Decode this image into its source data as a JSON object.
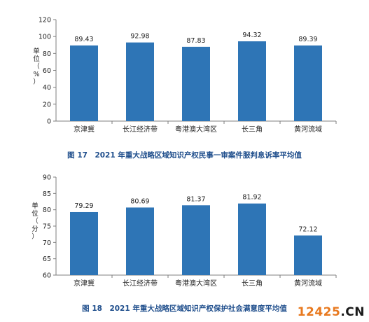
{
  "figures": [
    {
      "caption": "图 17　2021 年重大战略区域知识产权民事一审案件服判息诉率平均值"
    },
    {
      "caption": "图 18　2021 年重大战略区域知识产权保护社会满意度平均值"
    }
  ],
  "watermark": {
    "number": "12425",
    "domain": ".CN"
  },
  "chart_data": [
    {
      "type": "bar",
      "categories": [
        "京津冀",
        "长江经济带",
        "粤港澳大湾区",
        "长三角",
        "黄河流域"
      ],
      "values": [
        89.43,
        92.98,
        87.83,
        94.32,
        89.39
      ],
      "value_labels": [
        "89.43",
        "92.98",
        "87.83",
        "94.32",
        "89.39"
      ],
      "ylabel": "单位（%）",
      "ylabel_chars": [
        "单",
        "位",
        "（",
        "%",
        "）"
      ],
      "ylim": [
        0,
        120
      ],
      "yticks": [
        0,
        20,
        40,
        60,
        80,
        100,
        120
      ],
      "bar_color": "#2e75b6",
      "grid": false
    },
    {
      "type": "bar",
      "categories": [
        "京津冀",
        "长江经济带",
        "粤港澳大湾区",
        "长三角",
        "黄河流域"
      ],
      "values": [
        79.29,
        80.69,
        81.37,
        81.92,
        72.12
      ],
      "value_labels": [
        "79.29",
        "80.69",
        "81.37",
        "81.92",
        "72.12"
      ],
      "ylabel": "单位（分）",
      "ylabel_chars": [
        "单",
        "位",
        "（",
        "分",
        "）"
      ],
      "ylim": [
        60,
        90
      ],
      "yticks": [
        60,
        65,
        70,
        75,
        80,
        85,
        90
      ],
      "bar_color": "#2e75b6",
      "grid": false
    }
  ]
}
